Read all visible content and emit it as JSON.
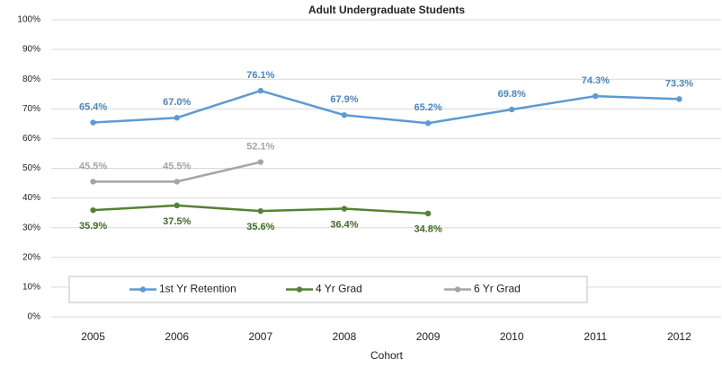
{
  "chart_data": {
    "type": "line",
    "title": "Adult Undergraduate Students",
    "x_label": "Cohort",
    "categories": [
      "2005",
      "2006",
      "2007",
      "2008",
      "2009",
      "2010",
      "2011",
      "2012"
    ],
    "series": [
      {
        "name": "1st Yr Retention",
        "color": "#5b9bd5",
        "values": [
          65.4,
          67.0,
          76.1,
          67.9,
          65.2,
          69.8,
          74.3,
          73.3
        ],
        "value_labels": [
          "65.4%",
          "67.0%",
          "76.1%",
          "67.9%",
          "65.2%",
          "69.8%",
          "74.3%",
          "73.3%"
        ]
      },
      {
        "name": "4 Yr Grad",
        "color": "#548235",
        "values": [
          35.9,
          37.5,
          35.6,
          36.4,
          34.8,
          null,
          null,
          null
        ],
        "value_labels": [
          "35.9%",
          "37.5%",
          "35.6%",
          "36.4%",
          "34.8%",
          null,
          null,
          null
        ]
      },
      {
        "name": "6 Yr Grad",
        "color": "#a5a5a5",
        "values": [
          45.5,
          45.5,
          52.1,
          null,
          null,
          null,
          null,
          null
        ],
        "value_labels": [
          "45.5%",
          "45.5%",
          "52.1%",
          null,
          null,
          null,
          null,
          null
        ]
      }
    ],
    "ylim": [
      0,
      100
    ],
    "yticks": [
      {
        "value": 0,
        "label": "0%"
      },
      {
        "value": 10,
        "label": "10%"
      },
      {
        "value": 20,
        "label": "20%"
      },
      {
        "value": 30,
        "label": "30%"
      },
      {
        "value": 40,
        "label": "40%"
      },
      {
        "value": 50,
        "label": "50%"
      },
      {
        "value": 60,
        "label": "60%"
      },
      {
        "value": 70,
        "label": "70%"
      },
      {
        "value": 80,
        "label": "80%"
      },
      {
        "value": 90,
        "label": "90%"
      },
      {
        "value": 100,
        "label": "100%"
      }
    ],
    "grid": true,
    "legend": "bottom"
  }
}
